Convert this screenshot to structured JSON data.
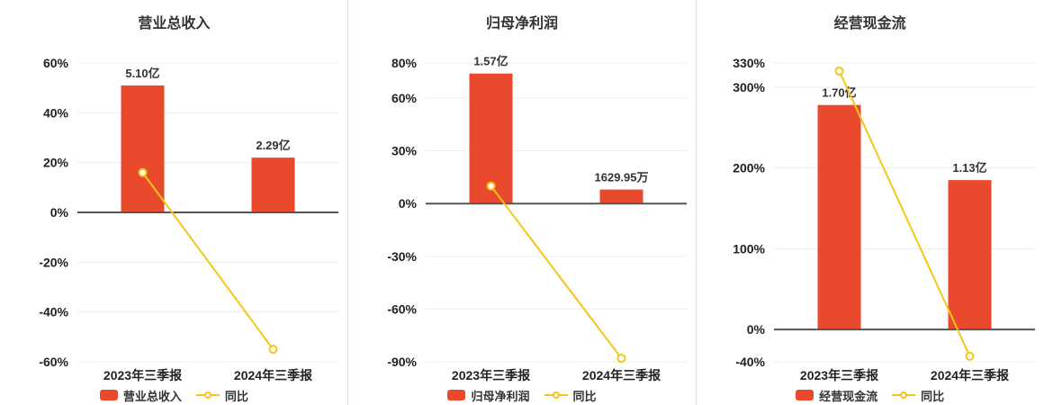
{
  "page": {
    "background": "#ffffff"
  },
  "colors": {
    "bar": "#e9492c",
    "line": "#f5c518",
    "grid": "#ececec",
    "zero_axis": "#555555",
    "text": "#222222"
  },
  "chart_data": [
    {
      "type": "bar",
      "overlay": "line",
      "title": "营业总收入",
      "categories": [
        "2023年三季报",
        "2024年三季报"
      ],
      "bar_series": {
        "name": "营业总收入",
        "labels": [
          "5.10亿",
          "2.29亿"
        ],
        "plotted_pct": [
          51,
          22
        ]
      },
      "line_series": {
        "name": "同比",
        "plotted_pct": [
          16,
          -55
        ]
      },
      "yticks": [
        60,
        40,
        20,
        0,
        -20,
        -40,
        -60
      ],
      "ylim": [
        -60,
        60
      ],
      "grid": true,
      "legend_position": "bottom"
    },
    {
      "type": "bar",
      "overlay": "line",
      "title": "归母净利润",
      "categories": [
        "2023年三季报",
        "2024年三季报"
      ],
      "bar_series": {
        "name": "归母净利润",
        "labels": [
          "1.57亿",
          "1629.95万"
        ],
        "plotted_pct": [
          74,
          8
        ]
      },
      "line_series": {
        "name": "同比",
        "plotted_pct": [
          10,
          -88
        ]
      },
      "yticks": [
        80,
        60,
        30,
        0,
        -30,
        -60,
        -90
      ],
      "ylim": [
        -90,
        80
      ],
      "grid": true,
      "legend_position": "bottom"
    },
    {
      "type": "bar",
      "overlay": "line",
      "title": "经营现金流",
      "categories": [
        "2023年三季报",
        "2024年三季报"
      ],
      "bar_series": {
        "name": "经营现金流",
        "labels": [
          "1.70亿",
          "1.13亿"
        ],
        "plotted_pct": [
          278,
          185
        ]
      },
      "line_series": {
        "name": "同比",
        "plotted_pct": [
          320,
          -33
        ]
      },
      "yticks": [
        330,
        300,
        200,
        100,
        0,
        -40
      ],
      "ylim": [
        -40,
        330
      ],
      "grid": true,
      "legend_position": "bottom"
    }
  ]
}
